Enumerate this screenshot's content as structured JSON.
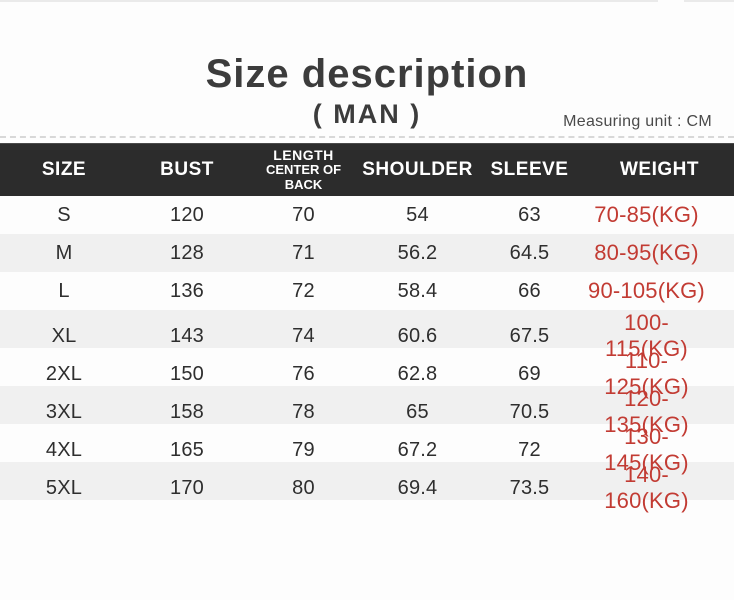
{
  "page": {
    "title": "Size description",
    "subtitle": "( MAN )",
    "unit_note": "Measuring unit : CM"
  },
  "table": {
    "header": {
      "size": "SIZE",
      "bust": "BUST",
      "length_line1": "LENGTH",
      "length_line2": "CENTER OF BACK",
      "shoulder": "SHOULDER",
      "sleeve": "SLEEVE",
      "weight": "WEIGHT"
    },
    "rows": [
      [
        "S",
        "120",
        "70",
        "54",
        "63",
        "70-85(KG)"
      ],
      [
        "M",
        "128",
        "71",
        "56.2",
        "64.5",
        "80-95(KG)"
      ],
      [
        "L",
        "136",
        "72",
        "58.4",
        "66",
        "90-105(KG)"
      ],
      [
        "XL",
        "143",
        "74",
        "60.6",
        "67.5",
        "100-115(KG)"
      ],
      [
        "2XL",
        "150",
        "76",
        "62.8",
        "69",
        "110-125(KG)"
      ],
      [
        "3XL",
        "158",
        "78",
        "65",
        "70.5",
        "120-135(KG)"
      ],
      [
        "4XL",
        "165",
        "79",
        "67.2",
        "72",
        "130-145(KG)"
      ],
      [
        "5XL",
        "170",
        "80",
        "69.4",
        "73.5",
        "140-160(KG)"
      ]
    ]
  },
  "colors": {
    "header_bg": "#2c2c2c",
    "header_text": "#ffffff",
    "weight_red": "#c23b33",
    "row_alt_bg": "#f0f0f0",
    "title_text": "#3c3c3c",
    "divider": "#d8d8d8"
  },
  "chart_data": {
    "type": "table",
    "title": "Size description",
    "subtitle": "( MAN )",
    "measuring_unit": "CM",
    "columns": [
      "SIZE",
      "BUST",
      "LENGTH CENTER OF BACK",
      "SHOULDER",
      "SLEEVE",
      "WEIGHT"
    ],
    "rows": [
      [
        "S",
        120,
        70,
        54,
        63,
        "70-85(KG)"
      ],
      [
        "M",
        128,
        71,
        56.2,
        64.5,
        "80-95(KG)"
      ],
      [
        "L",
        136,
        72,
        58.4,
        66,
        "90-105(KG)"
      ],
      [
        "XL",
        143,
        74,
        60.6,
        67.5,
        "100-115(KG)"
      ],
      [
        "2XL",
        150,
        76,
        62.8,
        69,
        "110-125(KG)"
      ],
      [
        "3XL",
        158,
        78,
        65,
        70.5,
        "120-135(KG)"
      ],
      [
        "4XL",
        165,
        79,
        67.2,
        72,
        "130-145(KG)"
      ],
      [
        "5XL",
        170,
        80,
        69.4,
        73.5,
        "140-160(KG)"
      ]
    ]
  }
}
